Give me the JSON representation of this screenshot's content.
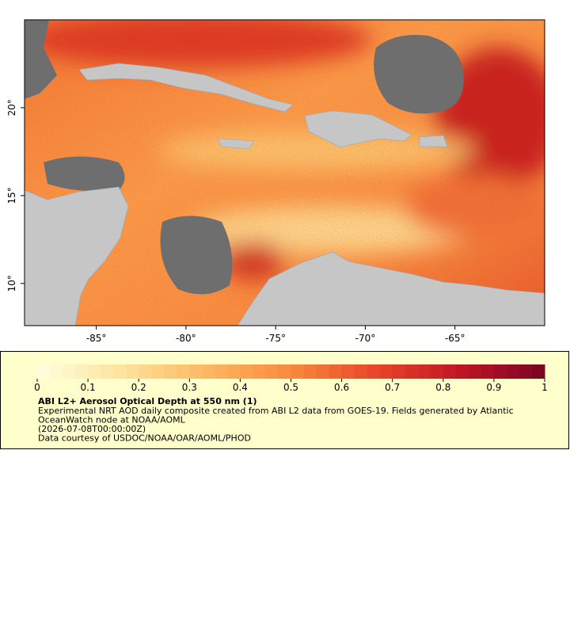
{
  "chart_data": {
    "type": "map",
    "title": "ABI L2+ Aerosol Optical Depth at 550 nm (1)",
    "description": [
      "Experimental NRT AOD daily composite created from ABI L2 data from GOES-19. Fields generated by Atlantic",
      "OceanWatch node at NOAA/AOML",
      "(2026-07-08T00:00:00Z)",
      "Data courtesy of USDOC/NOAA/OAR/AOML/PHOD"
    ],
    "xlim": [
      -89,
      -60
    ],
    "ylim": [
      7.6,
      25
    ],
    "xticks": [
      {
        "value": -85,
        "label": "-85°"
      },
      {
        "value": -80,
        "label": "-80°"
      },
      {
        "value": -75,
        "label": "-75°"
      },
      {
        "value": -70,
        "label": "-70°"
      },
      {
        "value": -65,
        "label": "-65°"
      }
    ],
    "yticks": [
      {
        "value": 10,
        "label": "10°"
      },
      {
        "value": 15,
        "label": "15°"
      },
      {
        "value": 20,
        "label": "20°"
      }
    ],
    "colorbar": {
      "range": [
        0,
        1
      ],
      "ticks": [
        0,
        0.1,
        0.2,
        0.3,
        0.4,
        0.5,
        0.6,
        0.7,
        0.8,
        0.9,
        1
      ],
      "colors": [
        "#ffffe0",
        "#fee39b",
        "#fdb863",
        "#f98a3d",
        "#e8452a",
        "#c01624",
        "#7a0425"
      ]
    }
  }
}
